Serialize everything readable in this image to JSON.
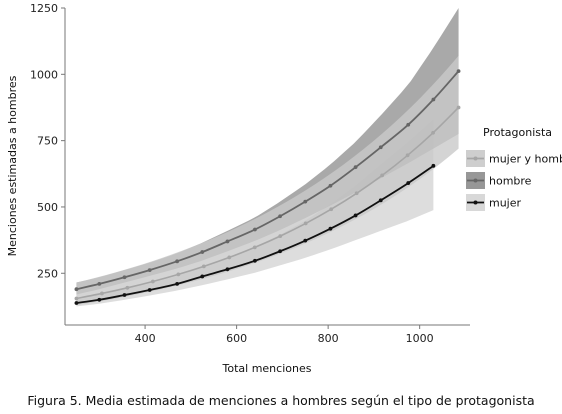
{
  "chart_data": {
    "type": "line",
    "xlabel": "Total menciones",
    "ylabel": "Menciones estimadas a hombres",
    "xlim": [
      225,
      1110
    ],
    "ylim": [
      55,
      1250
    ],
    "x_ticks": [
      "400",
      "600",
      "800",
      "1000"
    ],
    "x_tick_values": [
      400,
      600,
      800,
      1000
    ],
    "y_ticks": [
      "250",
      "500",
      "750",
      "1000",
      "1250"
    ],
    "y_tick_values": [
      250,
      500,
      750,
      1000,
      1250
    ],
    "legend": {
      "title": "Protagonista",
      "position": "right"
    },
    "caption": "Figura 5. Media estimada de menciones a hombres según el tipo de protagonista",
    "series": [
      {
        "name": "mujer y hombre",
        "color": "#a6a6a6",
        "band_color": "#c9c9c9",
        "x": [
          250,
          1085
        ],
        "y": [
          155,
          875
        ],
        "lower": [
          130,
          720
        ],
        "upper": [
          215,
          1070
        ]
      },
      {
        "name": "hombre",
        "color": "#666666",
        "band_color": "#8c8c8c",
        "x": [
          250,
          300,
          355,
          410,
          470,
          525,
          580,
          640,
          695,
          750,
          805,
          860,
          915,
          975,
          1030,
          1085
        ],
        "y": [
          190,
          210,
          235,
          262,
          295,
          330,
          370,
          415,
          465,
          520,
          580,
          650,
          725,
          810,
          905,
          1012
        ],
        "lower": [
          170,
          190,
          215,
          240,
          268,
          298,
          333,
          372,
          413,
          458,
          505,
          555,
          608,
          665,
          720,
          775
        ],
        "upper": [
          215,
          235,
          262,
          290,
          325,
          365,
          410,
          460,
          520,
          585,
          660,
          745,
          845,
          960,
          1100,
          1250
        ]
      },
      {
        "name": "mujer",
        "color": "#111111",
        "band_color": "#d4d4d4",
        "x": [
          250,
          300,
          355,
          410,
          470,
          525,
          580,
          640,
          695,
          750,
          805,
          860,
          915,
          975,
          1030
        ],
        "y": [
          138,
          150,
          168,
          187,
          210,
          238,
          265,
          297,
          333,
          373,
          418,
          468,
          525,
          590,
          655
        ],
        "lower": [
          125,
          135,
          150,
          166,
          185,
          205,
          227,
          252,
          280,
          308,
          340,
          375,
          410,
          448,
          488
        ],
        "upper": [
          155,
          168,
          190,
          212,
          240,
          275,
          310,
          350,
          395,
          448,
          510,
          580,
          660,
          745,
          830
        ]
      }
    ]
  }
}
